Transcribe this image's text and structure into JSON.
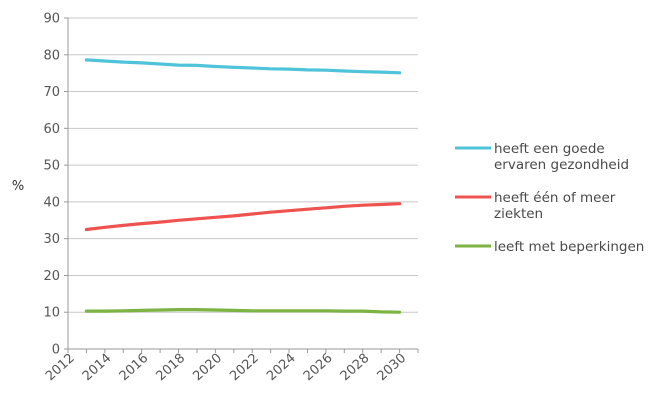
{
  "chart_data": {
    "type": "line",
    "ylabel": "%",
    "ylim": [
      0,
      90
    ],
    "yticks": [
      0,
      10,
      20,
      30,
      40,
      50,
      60,
      70,
      80,
      90
    ],
    "xlim": [
      2012,
      2031
    ],
    "xticks": [
      "2012",
      "2014",
      "2016",
      "2018",
      "2020",
      "2022",
      "2024",
      "2026",
      "2028",
      "2030"
    ],
    "x": [
      2013,
      2014,
      2015,
      2016,
      2017,
      2018,
      2019,
      2020,
      2021,
      2022,
      2023,
      2024,
      2025,
      2026,
      2027,
      2028,
      2029,
      2030
    ],
    "grid": true,
    "legend_position": "right",
    "series": [
      {
        "name": "heeft een goede ervaren gezondheid",
        "legend_lines": [
          "heeft een goede",
          "ervaren gezondheid"
        ],
        "color": "#4fc3d9",
        "values": [
          78.6,
          78.3,
          78.0,
          77.8,
          77.5,
          77.2,
          77.1,
          76.8,
          76.6,
          76.4,
          76.2,
          76.1,
          75.9,
          75.8,
          75.6,
          75.4,
          75.3,
          75.1
        ]
      },
      {
        "name": "heeft één of meer ziekten",
        "legend_lines": [
          "heeft één of meer",
          "ziekten"
        ],
        "color": "#ef5350",
        "values": [
          32.5,
          33.1,
          33.6,
          34.1,
          34.5,
          35.0,
          35.4,
          35.8,
          36.2,
          36.7,
          37.2,
          37.6,
          38.0,
          38.4,
          38.8,
          39.1,
          39.3,
          39.5
        ]
      },
      {
        "name": "leeft met beperkingen",
        "legend_lines": [
          "leeft met beperkingen"
        ],
        "color": "#7cb342",
        "values": [
          10.3,
          10.3,
          10.4,
          10.5,
          10.6,
          10.7,
          10.7,
          10.6,
          10.5,
          10.4,
          10.4,
          10.4,
          10.4,
          10.4,
          10.3,
          10.3,
          10.1,
          10.0
        ]
      }
    ],
    "colors": {
      "grid": "#c8c8c8",
      "axis": "#999999"
    }
  }
}
